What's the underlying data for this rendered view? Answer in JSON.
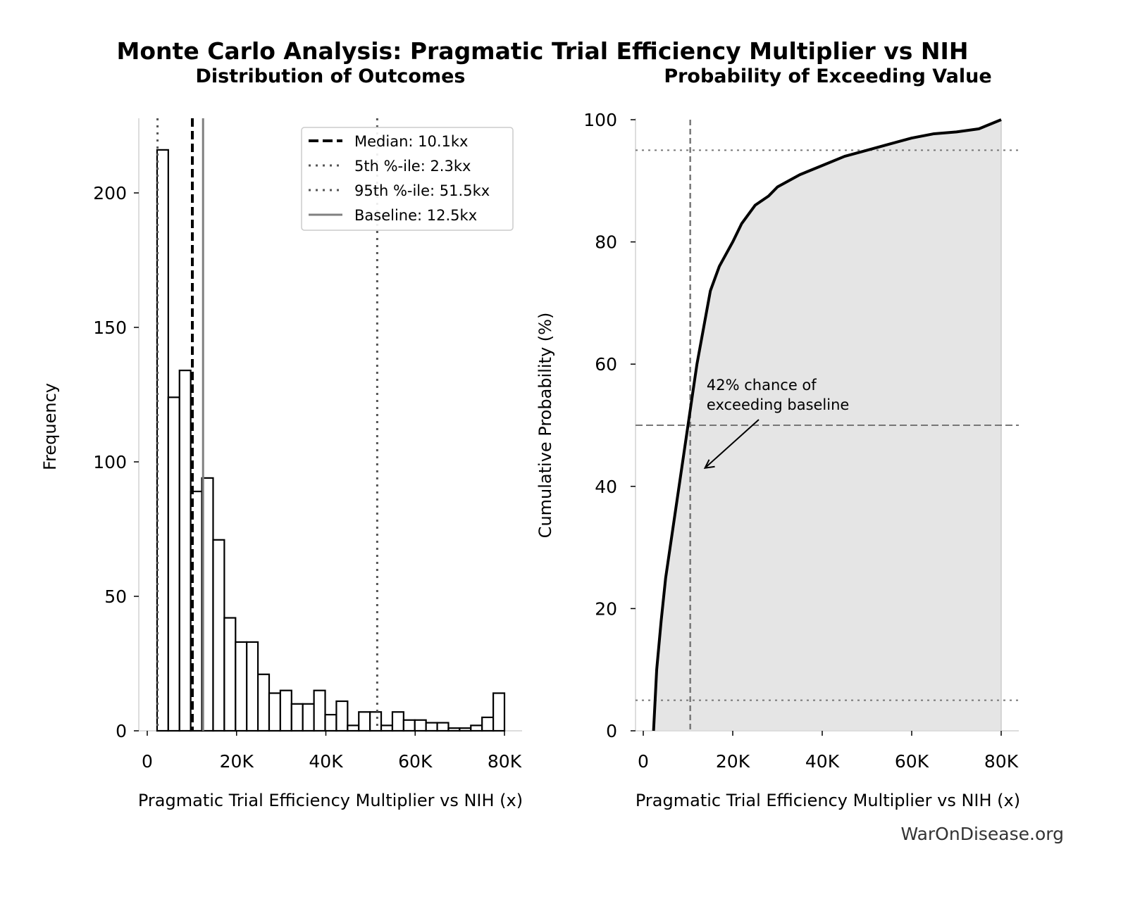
{
  "title": "Monte Carlo Analysis: Pragmatic Trial Efficiency Multiplier vs NIH",
  "watermark": "WarOnDisease.org",
  "colors": {
    "bar_edge": "#000000",
    "median": "#000000",
    "percentile": "#555555",
    "baseline": "#808080",
    "fill": "#e5e5e5",
    "curve": "#000000"
  },
  "chart_data": [
    {
      "type": "bar",
      "title": "Distribution of Outcomes",
      "xlabel": "Pragmatic Trial Efficiency Multiplier vs NIH (x)",
      "ylabel": "Frequency",
      "xlim": [
        -1500,
        84000
      ],
      "ylim": [
        0,
        227
      ],
      "xticks": [
        0,
        20000,
        40000,
        60000,
        80000
      ],
      "xtick_labels": [
        "0",
        "20K",
        "40K",
        "60K",
        "80K"
      ],
      "yticks": [
        0,
        50,
        100,
        150,
        200
      ],
      "ytick_labels": [
        "0",
        "50",
        "100",
        "150",
        "200"
      ],
      "bin_start": 2200,
      "bin_end": 80000,
      "values": [
        216,
        124,
        134,
        89,
        94,
        71,
        42,
        33,
        33,
        21,
        14,
        15,
        10,
        10,
        15,
        6,
        11,
        2,
        7,
        7,
        2,
        7,
        4,
        4,
        3,
        3,
        1,
        1,
        2,
        5,
        14
      ],
      "vlines": [
        {
          "x": 10100,
          "style": "dashed",
          "color": "#000000",
          "label": "Median: 10.1kx"
        },
        {
          "x": 2300,
          "style": "dotted",
          "color": "#555555",
          "label": "5th %-ile: 2.3kx"
        },
        {
          "x": 51500,
          "style": "dotted",
          "color": "#555555",
          "label": "95th %-ile: 51.5kx"
        },
        {
          "x": 12500,
          "style": "solid",
          "color": "#808080",
          "label": "Baseline: 12.5kx"
        }
      ],
      "legend_position": "upper-right",
      "grid": false
    },
    {
      "type": "line",
      "title": "Probability of Exceeding Value",
      "xlabel": "Pragmatic Trial Efficiency Multiplier vs NIH (x)",
      "ylabel": "Cumulative Probability (%)",
      "xlim": [
        -1500,
        84000
      ],
      "ylim": [
        0,
        100
      ],
      "xticks": [
        0,
        20000,
        40000,
        60000,
        80000
      ],
      "xtick_labels": [
        "0",
        "20K",
        "40K",
        "60K",
        "80K"
      ],
      "yticks": [
        0,
        20,
        40,
        60,
        80,
        100
      ],
      "ytick_labels": [
        "0",
        "20",
        "40",
        "60",
        "80",
        "100"
      ],
      "x": [
        2300,
        3000,
        4000,
        5000,
        6000,
        7000,
        8000,
        9000,
        10000,
        11000,
        12000,
        13000,
        14000,
        15000,
        17000,
        20000,
        22000,
        25000,
        28000,
        30000,
        35000,
        40000,
        45000,
        50000,
        55000,
        60000,
        65000,
        70000,
        75000,
        80000
      ],
      "y": [
        0,
        10,
        18,
        25,
        30,
        35,
        40,
        45,
        50,
        55,
        60,
        64,
        68,
        72,
        76,
        80,
        83,
        86,
        87.5,
        89,
        91,
        92.5,
        94,
        95,
        96,
        97,
        97.7,
        98,
        98.5,
        100
      ],
      "hlines": [
        {
          "y": 5,
          "style": "dotted"
        },
        {
          "y": 50,
          "style": "dashed"
        },
        {
          "y": 95,
          "style": "dotted"
        }
      ],
      "vline": {
        "x": 10500,
        "style": "dashed"
      },
      "annotation": {
        "lines": [
          "42% chance of",
          "exceeding baseline"
        ],
        "text_x": 14000,
        "text_y": 56,
        "arrow_to_x": 13000,
        "arrow_to_y": 43
      },
      "grid": false
    }
  ]
}
